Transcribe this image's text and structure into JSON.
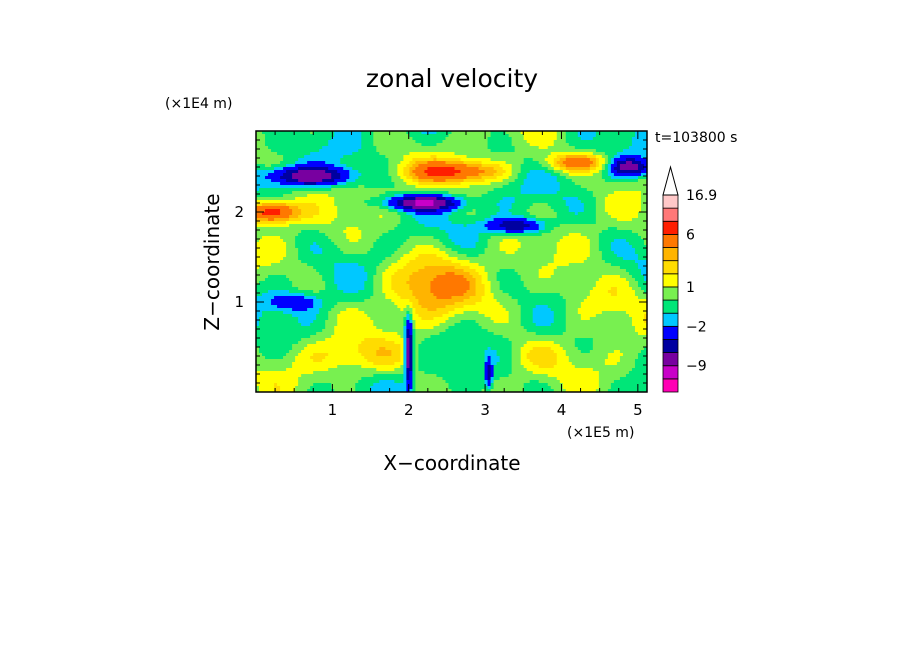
{
  "chart_data": {
    "type": "heatmap",
    "title": "zonal velocity",
    "xlabel": "X−coordinate",
    "ylabel": "Z−coordinate",
    "x_scale_note": "(×1E5 m)",
    "y_scale_note": "(×1E4 m)",
    "time_label": "t=103800 s",
    "xlim": [
      0,
      5.12
    ],
    "ylim": [
      0,
      2.9
    ],
    "x_ticks": [
      1,
      2,
      3,
      4,
      5
    ],
    "y_ticks": [
      1,
      2
    ],
    "colorbar": {
      "levels": [
        -16,
        -12,
        -9,
        -6,
        -4,
        -2,
        -1,
        0,
        1,
        2,
        3,
        4,
        6,
        9,
        12,
        16.9
      ],
      "colors": [
        "#ff00b4",
        "#c800c8",
        "#7800a0",
        "#0000a0",
        "#0000ff",
        "#00c8ff",
        "#00e678",
        "#78f050",
        "#ffff00",
        "#ffdc00",
        "#ffb400",
        "#ff7800",
        "#ff1e00",
        "#ff7878",
        "#ffc8c8"
      ],
      "labels": [
        {
          "value": -9,
          "text": "−9"
        },
        {
          "value": -2,
          "text": "−2"
        },
        {
          "value": 1,
          "text": "1"
        },
        {
          "value": 6,
          "text": "6"
        },
        {
          "value": 16.9,
          "text": "16.9"
        }
      ]
    },
    "features": [
      {
        "kind": "jet",
        "x": 0.7,
        "z": 2.4,
        "value": -8,
        "sx": 0.5,
        "sz": 0.1
      },
      {
        "kind": "jet",
        "x": 2.2,
        "z": 2.1,
        "value": -9,
        "sx": 0.45,
        "sz": 0.08
      },
      {
        "kind": "jet",
        "x": 3.4,
        "z": 1.85,
        "value": -6,
        "sx": 0.35,
        "sz": 0.08
      },
      {
        "kind": "jet",
        "x": 4.9,
        "z": 2.5,
        "value": -7,
        "sx": 0.25,
        "sz": 0.1
      },
      {
        "kind": "jet",
        "x": 0.2,
        "z": 2.0,
        "value": 8,
        "sx": 0.35,
        "sz": 0.12
      },
      {
        "kind": "jet",
        "x": 2.6,
        "z": 2.45,
        "value": 6,
        "sx": 0.6,
        "sz": 0.12
      },
      {
        "kind": "jet",
        "x": 4.2,
        "z": 2.55,
        "value": 5,
        "sx": 0.4,
        "sz": 0.1
      },
      {
        "kind": "blob",
        "x": 2.3,
        "z": 1.2,
        "value": 4,
        "sx": 0.6,
        "sz": 0.35
      },
      {
        "kind": "blob",
        "x": 0.5,
        "z": 1.0,
        "value": -3,
        "sx": 0.35,
        "sz": 0.1
      },
      {
        "kind": "blob",
        "x": 4.5,
        "z": 1.0,
        "value": 2,
        "sx": 0.6,
        "sz": 0.3
      },
      {
        "kind": "blob",
        "x": 1.3,
        "z": 0.4,
        "value": 2,
        "sx": 0.7,
        "sz": 0.2
      },
      {
        "kind": "blob",
        "x": 3.6,
        "z": 0.4,
        "value": 1.5,
        "sx": 0.5,
        "sz": 0.2
      },
      {
        "kind": "mountain-wave",
        "x": 2.0,
        "z": 0.45,
        "value": -9,
        "sx": 0.05,
        "sz": 0.35
      },
      {
        "kind": "mountain-wave",
        "x": 3.05,
        "z": 0.2,
        "value": -5,
        "sx": 0.04,
        "sz": 0.15
      }
    ]
  }
}
